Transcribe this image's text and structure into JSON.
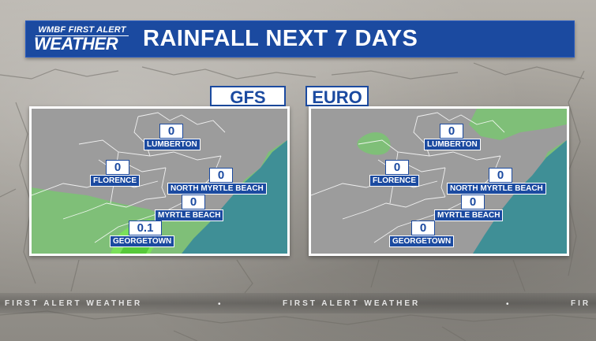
{
  "header": {
    "logo_line1": "WMBF FIRST ALERT",
    "logo_line2": "WEATHER",
    "title": "RAINFALL NEXT 7 DAYS"
  },
  "panels": [
    {
      "model": "GFS",
      "cities": [
        {
          "name": "LUMBERTON",
          "value": "0"
        },
        {
          "name": "FLORENCE",
          "value": "0"
        },
        {
          "name": "NORTH MYRTLE BEACH",
          "value": "0"
        },
        {
          "name": "MYRTLE BEACH",
          "value": "0"
        },
        {
          "name": "GEORGETOWN",
          "value": "0.1"
        }
      ]
    },
    {
      "model": "EURO",
      "cities": [
        {
          "name": "LUMBERTON",
          "value": "0"
        },
        {
          "name": "FLORENCE",
          "value": "0"
        },
        {
          "name": "NORTH MYRTLE BEACH",
          "value": "0"
        },
        {
          "name": "MYRTLE BEACH",
          "value": "0"
        },
        {
          "name": "GEORGETOWN",
          "value": "0"
        }
      ]
    }
  ],
  "ticker": {
    "text_left": "FIRST ALERT WEATHER",
    "text_center": "FIRST ALERT WEATHER",
    "text_right": "FIR"
  },
  "colors": {
    "brand_blue": "#1b4aa0",
    "land_gray": "#9c9c9c",
    "ocean_teal": "#3f8f96",
    "green_rain": "#7fbf78",
    "bright_green": "#7be05a"
  }
}
